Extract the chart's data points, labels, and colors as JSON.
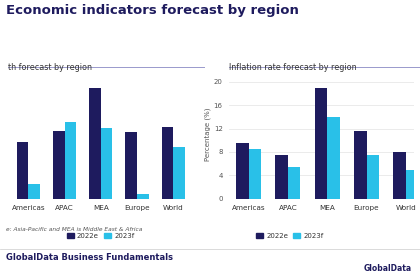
{
  "title": "Economic indicators forecast by region",
  "title_fontsize": 9.5,
  "title_color": "#1e1b5e",
  "left_subtitle": "th forecast by region",
  "right_subtitle": "Inflation rate forecast by region",
  "subtitle_fontsize": 5.8,
  "subtitle_color": "#333333",
  "left_categories": [
    "Americas",
    "APAC",
    "MEA",
    "Europe",
    "World"
  ],
  "right_categories": [
    "Americas",
    "APAC",
    "MEA",
    "Europe",
    "World"
  ],
  "left_2022": [
    11.0,
    13.2,
    21.5,
    13.0,
    14.0
  ],
  "left_2023": [
    2.8,
    15.0,
    13.8,
    1.0,
    10.0
  ],
  "right_2022": [
    9.5,
    7.5,
    19.0,
    11.5,
    8.0
  ],
  "right_2023": [
    8.5,
    5.5,
    14.0,
    7.5,
    5.0
  ],
  "color_2022": "#1e1b5e",
  "color_2023": "#29c0e8",
  "right_ylabel": "Percentage (%)",
  "left_ylim": [
    0,
    25
  ],
  "right_ylim": [
    0,
    22
  ],
  "right_yticks": [
    0,
    4,
    8,
    12,
    16,
    20
  ],
  "footnote": "e: Asia-Pacific and MEA is Middle East & Africa",
  "footer": "GlobalData Business Fundamentals",
  "legend_2022": "2022e",
  "legend_2023": "2023f",
  "bg_color": "#ffffff",
  "bar_width": 0.32
}
